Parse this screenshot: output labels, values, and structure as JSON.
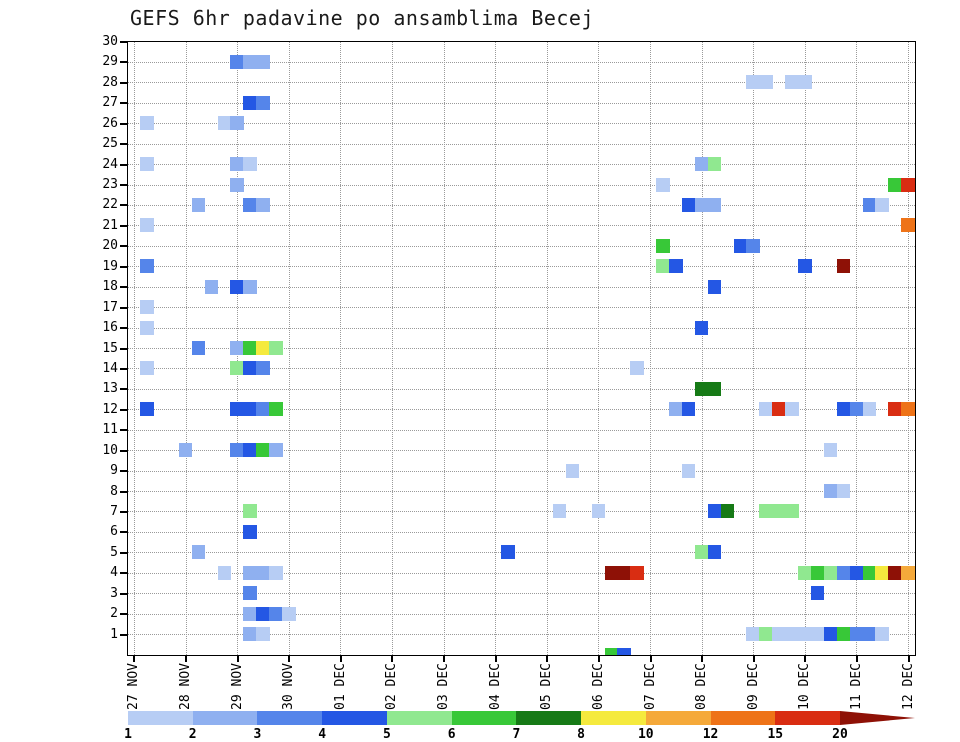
{
  "title": "GEFS 6hr padavine po ansamblima Becej",
  "chart_data": {
    "type": "heatmap",
    "title": "GEFS 6hr padavine po ansamblima Becej",
    "x_axis": {
      "tick_labels": [
        "27 NOV",
        "28 NOV",
        "29 NOV",
        "30 NOV",
        "01 DEC",
        "02 DEC",
        "03 DEC",
        "04 DEC",
        "05 DEC",
        "06 DEC",
        "07 DEC",
        "08 DEC",
        "09 DEC",
        "10 DEC",
        "11 DEC",
        "12 DEC"
      ],
      "steps_per_day": 4,
      "total_steps": 61,
      "step_unit": "6hr"
    },
    "y_axis": {
      "unit": "ensemble member",
      "tick_labels": [
        1,
        2,
        3,
        4,
        5,
        6,
        7,
        8,
        9,
        10,
        11,
        12,
        13,
        14,
        15,
        16,
        17,
        18,
        19,
        20,
        21,
        22,
        23,
        24,
        25,
        26,
        27,
        28,
        29,
        30
      ]
    },
    "colorbar": {
      "labels": [
        "1",
        "2",
        "3",
        "4",
        "5",
        "6",
        "7",
        "8",
        "10",
        "12",
        "15",
        "20"
      ],
      "colors": [
        "#b7cdf4",
        "#8fb0f0",
        "#5585ea",
        "#2457e4",
        "#90e890",
        "#38c838",
        "#167a16",
        "#f5ea3e",
        "#f5a93a",
        "#ee7318",
        "#d92d12",
        "#8e1106"
      ],
      "unit": "mm / 6hr"
    },
    "cells_format": "[time_step, ensemble_member, precip_level_mm]",
    "cells": [
      [
        8,
        29,
        3
      ],
      [
        9,
        29,
        2
      ],
      [
        10,
        29,
        2
      ],
      [
        48,
        28,
        1
      ],
      [
        49,
        28,
        1
      ],
      [
        51,
        28,
        1
      ],
      [
        52,
        28,
        1
      ],
      [
        9,
        27,
        4
      ],
      [
        10,
        27,
        3
      ],
      [
        1,
        26,
        1
      ],
      [
        7,
        26,
        1
      ],
      [
        8,
        26,
        2
      ],
      [
        1,
        24,
        1
      ],
      [
        8,
        24,
        2
      ],
      [
        9,
        24,
        1
      ],
      [
        44,
        24,
        2
      ],
      [
        45,
        24,
        5
      ],
      [
        8,
        23,
        2
      ],
      [
        41,
        23,
        1
      ],
      [
        59,
        23,
        6
      ],
      [
        60,
        23,
        15
      ],
      [
        5,
        22,
        2
      ],
      [
        9,
        22,
        3
      ],
      [
        10,
        22,
        2
      ],
      [
        43,
        22,
        4
      ],
      [
        44,
        22,
        2
      ],
      [
        45,
        22,
        2
      ],
      [
        57,
        22,
        3
      ],
      [
        58,
        22,
        1
      ],
      [
        1,
        21,
        1
      ],
      [
        60,
        21,
        12
      ],
      [
        41,
        20,
        6
      ],
      [
        47,
        20,
        4
      ],
      [
        48,
        20,
        3
      ],
      [
        1,
        19,
        3
      ],
      [
        41,
        19,
        5
      ],
      [
        42,
        19,
        4
      ],
      [
        52,
        19,
        4
      ],
      [
        55,
        19,
        20
      ],
      [
        6,
        18,
        2
      ],
      [
        8,
        18,
        4
      ],
      [
        9,
        18,
        2
      ],
      [
        45,
        18,
        4
      ],
      [
        1,
        17,
        1
      ],
      [
        1,
        16,
        1
      ],
      [
        44,
        16,
        4
      ],
      [
        5,
        15,
        3
      ],
      [
        8,
        15,
        2
      ],
      [
        9,
        15,
        6
      ],
      [
        10,
        15,
        8
      ],
      [
        11,
        15,
        5
      ],
      [
        1,
        14,
        1
      ],
      [
        8,
        14,
        5
      ],
      [
        9,
        14,
        4
      ],
      [
        10,
        14,
        3
      ],
      [
        39,
        14,
        1
      ],
      [
        44,
        13,
        7
      ],
      [
        45,
        13,
        7
      ],
      [
        1,
        12,
        4
      ],
      [
        8,
        12,
        4
      ],
      [
        9,
        12,
        4
      ],
      [
        10,
        12,
        3
      ],
      [
        11,
        12,
        6
      ],
      [
        42,
        12,
        2
      ],
      [
        43,
        12,
        4
      ],
      [
        49,
        12,
        1
      ],
      [
        50,
        12,
        15
      ],
      [
        51,
        12,
        1
      ],
      [
        55,
        12,
        4
      ],
      [
        56,
        12,
        3
      ],
      [
        57,
        12,
        1
      ],
      [
        59,
        12,
        15
      ],
      [
        60,
        12,
        12
      ],
      [
        4,
        10,
        2
      ],
      [
        8,
        10,
        3
      ],
      [
        9,
        10,
        4
      ],
      [
        10,
        10,
        6
      ],
      [
        11,
        10,
        2
      ],
      [
        54,
        10,
        1
      ],
      [
        34,
        9,
        1
      ],
      [
        43,
        9,
        1
      ],
      [
        54,
        8,
        2
      ],
      [
        55,
        8,
        1
      ],
      [
        9,
        7,
        5
      ],
      [
        33,
        7,
        1
      ],
      [
        36,
        7,
        1
      ],
      [
        45,
        7,
        4
      ],
      [
        46,
        7,
        7
      ],
      [
        49,
        7,
        5
      ],
      [
        50,
        7,
        5
      ],
      [
        51,
        7,
        5
      ],
      [
        9,
        6,
        4
      ],
      [
        5,
        5,
        2
      ],
      [
        29,
        5,
        4
      ],
      [
        44,
        5,
        5
      ],
      [
        45,
        5,
        4
      ],
      [
        7,
        4,
        1
      ],
      [
        9,
        4,
        2
      ],
      [
        10,
        4,
        2
      ],
      [
        11,
        4,
        1
      ],
      [
        37,
        4,
        20
      ],
      [
        38,
        4,
        20
      ],
      [
        39,
        4,
        15
      ],
      [
        52,
        4,
        5
      ],
      [
        53,
        4,
        6
      ],
      [
        54,
        4,
        5
      ],
      [
        55,
        4,
        3
      ],
      [
        56,
        4,
        4
      ],
      [
        57,
        4,
        6
      ],
      [
        58,
        4,
        8
      ],
      [
        59,
        4,
        20
      ],
      [
        60,
        4,
        10
      ],
      [
        9,
        3,
        3
      ],
      [
        53,
        3,
        4
      ],
      [
        9,
        2,
        2
      ],
      [
        10,
        2,
        4
      ],
      [
        11,
        2,
        3
      ],
      [
        12,
        2,
        1
      ],
      [
        9,
        1,
        2
      ],
      [
        10,
        1,
        1
      ],
      [
        48,
        1,
        1
      ],
      [
        49,
        1,
        5
      ],
      [
        50,
        1,
        1
      ],
      [
        51,
        1,
        1
      ],
      [
        52,
        1,
        1
      ],
      [
        53,
        1,
        1
      ],
      [
        54,
        1,
        4
      ],
      [
        55,
        1,
        6
      ],
      [
        56,
        1,
        3
      ],
      [
        57,
        1,
        3
      ],
      [
        58,
        1,
        1
      ],
      [
        37,
        0,
        6
      ],
      [
        38,
        0,
        4
      ]
    ]
  }
}
